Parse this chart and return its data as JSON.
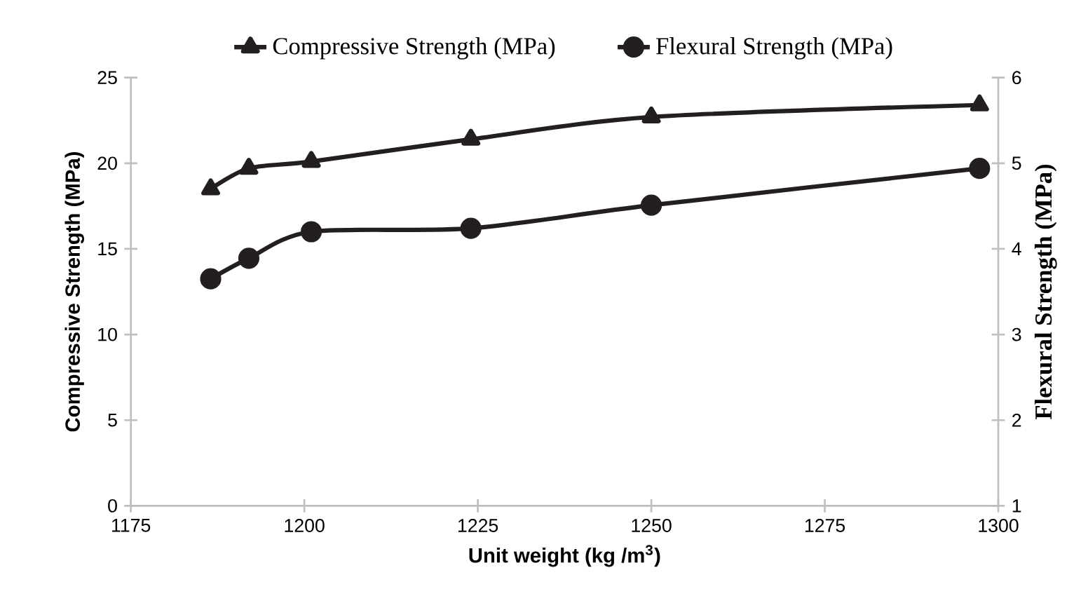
{
  "chart_data": {
    "type": "line",
    "xlabel": "Unit weight (kg /m$^{3}$)",
    "ylabel": "Compressive Strength (MPa)",
    "y2label": "Flexural Strength (MPa)",
    "xlim": [
      1175,
      1300
    ],
    "xticks": [
      1175,
      1200,
      1225,
      1250,
      1275,
      1300
    ],
    "ylim": [
      0,
      25
    ],
    "yticks": [
      0,
      5,
      10,
      15,
      20,
      25
    ],
    "y2lim": [
      1,
      6
    ],
    "y2ticks": [
      1,
      2,
      3,
      4,
      5,
      6
    ],
    "grid": false,
    "legend": "top",
    "line_style": "solid",
    "series": [
      {
        "name": "Compressive Strength (MPa)",
        "color": "#231f20",
        "marker": "triangle",
        "x": [
          1186.5,
          1192,
          1201,
          1224,
          1250,
          1297.3
        ],
        "values": [
          18.5,
          19.7,
          20.1,
          21.4,
          22.7,
          23.4
        ]
      },
      {
        "name": "Flexural Strength (MPa)",
        "color": "#231f20",
        "marker": "circle",
        "axis": "y2",
        "x": [
          1186.5,
          1192,
          1201,
          1224,
          1250,
          1297.3
        ],
        "values": [
          3.65,
          3.89,
          4.2,
          4.24,
          4.51,
          4.94
        ]
      }
    ]
  }
}
